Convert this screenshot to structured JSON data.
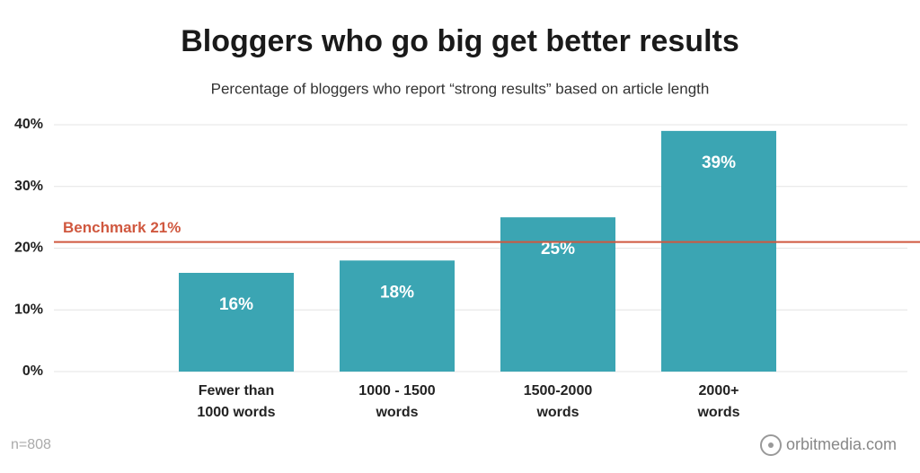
{
  "chart_data": {
    "type": "bar",
    "title": "Bloggers who go big get better results",
    "subtitle": "Percentage of bloggers who report “strong results” based on article length",
    "categories": [
      "Fewer than\n1000 words",
      "1000 - 1500\nwords",
      "1500-2000\nwords",
      "2000+\nwords"
    ],
    "values": [
      16,
      18,
      25,
      39
    ],
    "value_labels": [
      "16%",
      "18%",
      "25%",
      "39%"
    ],
    "color": "#3ba5b3",
    "ylim": [
      0,
      40
    ],
    "yticks": [
      {
        "value": 0,
        "label": "0%"
      },
      {
        "value": 10,
        "label": "10%"
      },
      {
        "value": 20,
        "label": "20%"
      },
      {
        "value": 30,
        "label": "30%"
      },
      {
        "value": 40,
        "label": "40%"
      }
    ],
    "grid": true,
    "benchmark": {
      "label": "Benchmark 21%",
      "value": 21,
      "color": "#d0583f"
    },
    "note": "n=808",
    "source": "orbitmedia.com"
  }
}
